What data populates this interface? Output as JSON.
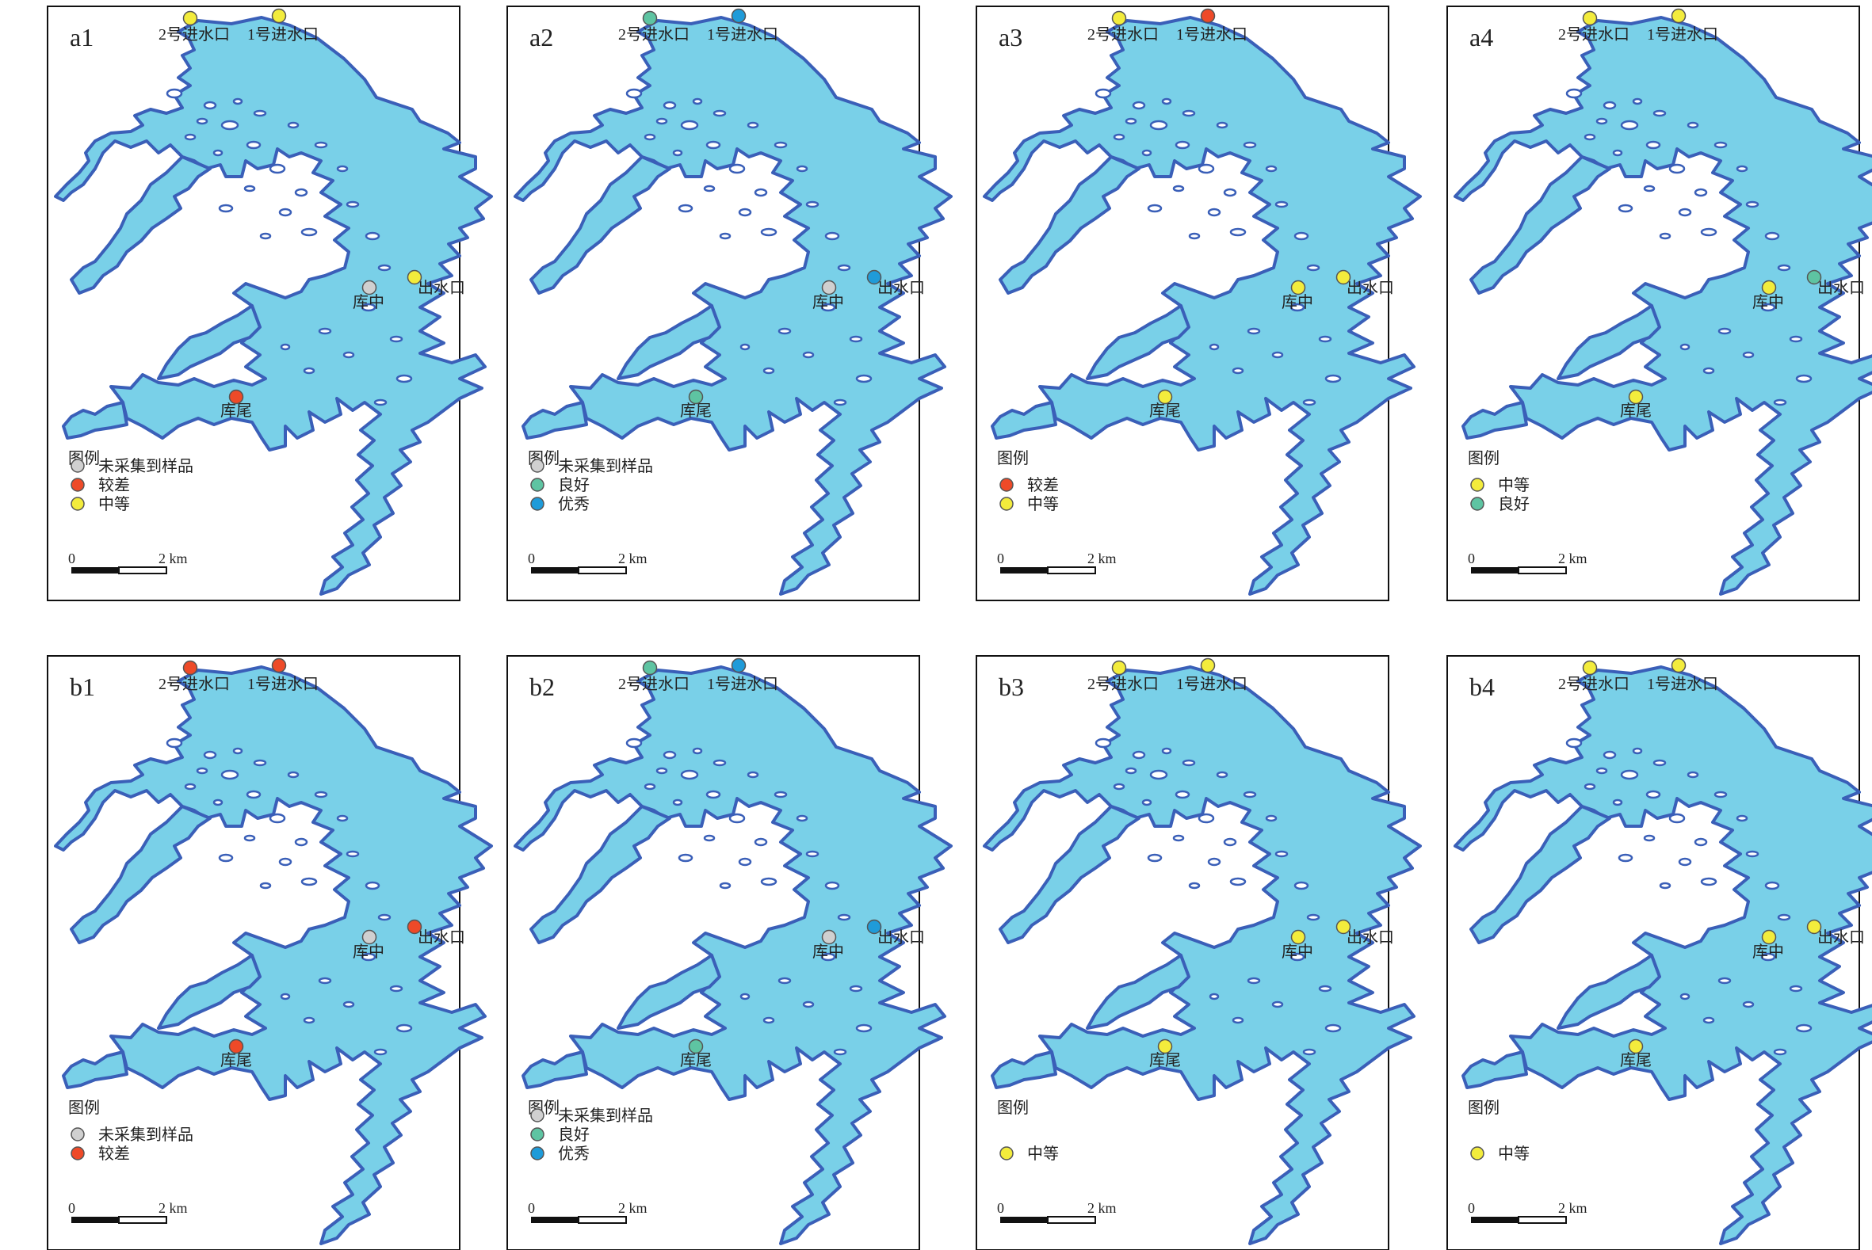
{
  "colors": {
    "water": "#79d0e8",
    "shore": "#3a5fb8",
    "frame": "#111111",
    "grades": {
      "未采集到样品": "#d0d0d0",
      "较差": "#ee4a28",
      "中等": "#f3ec3c",
      "良好": "#5ec4a2",
      "优秀": "#1f9bd9"
    }
  },
  "site_names": {
    "inlet2": "2号进水口",
    "inlet1": "1号进水口",
    "middle": "库中",
    "outlet": "出水口",
    "tail": "库尾"
  },
  "legend_title": "图例",
  "scalebar": {
    "zero": "0",
    "end": "2 km"
  },
  "panels": [
    {
      "label": "a1",
      "sites": {
        "inlet2": "中等",
        "inlet1": "中等",
        "middle": "未采集到样品",
        "outlet": "中等",
        "tail": "较差"
      },
      "legend": [
        "未采集到样品",
        "较差",
        "中等"
      ]
    },
    {
      "label": "a2",
      "sites": {
        "inlet2": "良好",
        "inlet1": "优秀",
        "middle": "未采集到样品",
        "outlet": "优秀",
        "tail": "良好"
      },
      "legend": [
        "未采集到样品",
        "良好",
        "优秀"
      ]
    },
    {
      "label": "a3",
      "sites": {
        "inlet2": "中等",
        "inlet1": "较差",
        "middle": "中等",
        "outlet": "中等",
        "tail": "中等"
      },
      "legend": [
        "较差",
        "中等"
      ]
    },
    {
      "label": "a4",
      "sites": {
        "inlet2": "中等",
        "inlet1": "中等",
        "middle": "中等",
        "outlet": "良好",
        "tail": "中等"
      },
      "legend": [
        "中等",
        "良好"
      ]
    },
    {
      "label": "b1",
      "sites": {
        "inlet2": "较差",
        "inlet1": "较差",
        "middle": "未采集到样品",
        "outlet": "较差",
        "tail": "较差"
      },
      "legend": [
        "未采集到样品",
        "较差"
      ]
    },
    {
      "label": "b2",
      "sites": {
        "inlet2": "良好",
        "inlet1": "优秀",
        "middle": "未采集到样品",
        "outlet": "优秀",
        "tail": "良好"
      },
      "legend": [
        "未采集到样品",
        "良好",
        "优秀"
      ]
    },
    {
      "label": "b3",
      "sites": {
        "inlet2": "中等",
        "inlet1": "中等",
        "middle": "中等",
        "outlet": "中等",
        "tail": "中等"
      },
      "legend": [
        "中等"
      ]
    },
    {
      "label": "b4",
      "sites": {
        "inlet2": "中等",
        "inlet1": "中等",
        "middle": "中等",
        "outlet": "中等",
        "tail": "中等"
      },
      "legend": [
        "中等"
      ]
    }
  ]
}
